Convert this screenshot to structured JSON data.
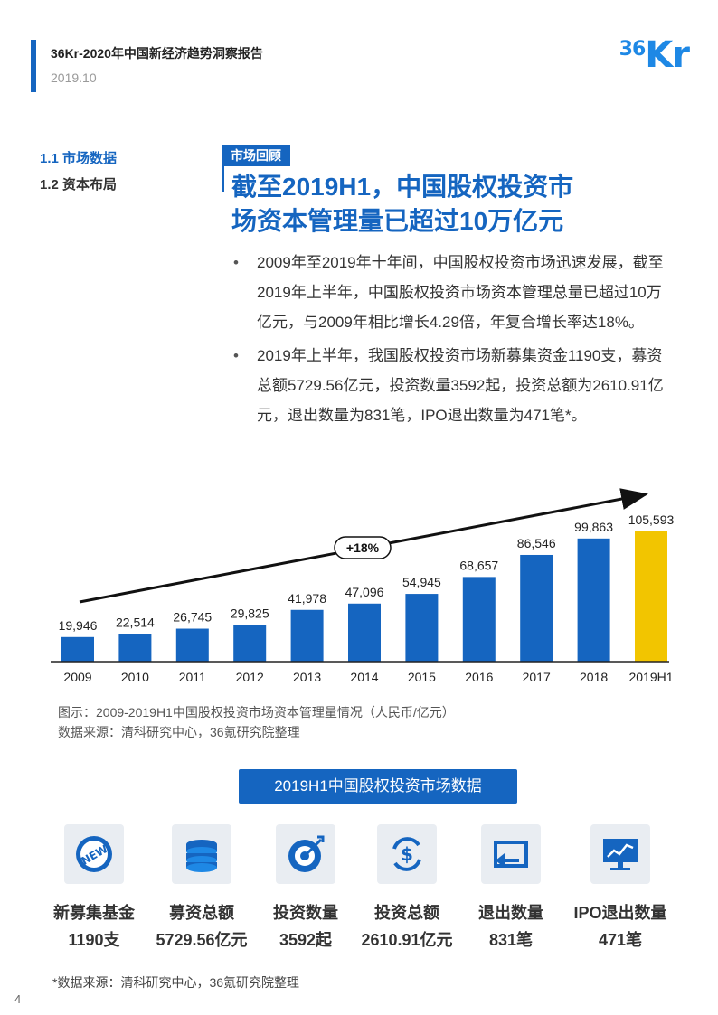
{
  "header": {
    "report_title": "36Kr-2020年中国新经济趋势洞察报告",
    "date": "2019.10",
    "logo_text": "36Kr"
  },
  "nav": {
    "items": [
      {
        "label": "1.1 市场数据",
        "active": true
      },
      {
        "label": "1.2 资本布局",
        "active": false
      }
    ]
  },
  "section": {
    "tag": "市场回顾",
    "headline_line1": "截至2019H1，中国股权投资市",
    "headline_line2": "场资本管理量已超过10万亿元",
    "bullets": [
      "2009年至2019年十年间，中国股权投资市场迅速发展，截至2019年上半年，中国股权投资市场资本管理总量已超过10万亿元，与2009年相比增长4.29倍，年复合增长率达18%。",
      "2019年上半年，我国股权投资市场新募集资金1190支，募资总额5729.56亿元，投资数量3592起，投资总额为2610.91亿元，退出数量为831笔，IPO退出数量为471笔*。"
    ]
  },
  "chart_data": {
    "type": "bar",
    "categories": [
      "2009",
      "2010",
      "2011",
      "2012",
      "2013",
      "2014",
      "2015",
      "2016",
      "2017",
      "2018",
      "2019H1"
    ],
    "values": [
      19946,
      22514,
      26745,
      29825,
      41978,
      47096,
      54945,
      68657,
      86546,
      99863,
      105593
    ],
    "value_labels": [
      "19,946",
      "22,514",
      "26,745",
      "29,825",
      "41,978",
      "47,096",
      "54,945",
      "68,657",
      "86,546",
      "99,863",
      "105,593"
    ],
    "annotation": "+18%",
    "highlight_category": "2019H1",
    "colors": {
      "bar": "#1565c0",
      "highlight": "#f2c500"
    },
    "ylim": [
      0,
      110000
    ],
    "grid": false,
    "caption": "图示：2009-2019H1中国股权投资市场资本管理量情况（人民币/亿元）",
    "source": "数据来源：清科研究中心，36氪研究院整理"
  },
  "stats": {
    "title": "2019H1中国股权投资市场数据",
    "items": [
      {
        "label": "新募集基金",
        "value": "1190支",
        "icon": "new-badge-icon"
      },
      {
        "label": "募资总额",
        "value": "5729.56亿元",
        "icon": "coin-stack-icon"
      },
      {
        "label": "投资数量",
        "value": "3592起",
        "icon": "target-icon"
      },
      {
        "label": "投资总额",
        "value": "2610.91亿元",
        "icon": "dollar-cycle-icon"
      },
      {
        "label": "退出数量",
        "value": "831笔",
        "icon": "exit-arrow-icon"
      },
      {
        "label": "IPO退出数量",
        "value": "471笔",
        "icon": "monitor-chart-icon"
      }
    ]
  },
  "footer": {
    "source_note": "*数据来源：清科研究中心，36氪研究院整理",
    "page_number": "4"
  }
}
